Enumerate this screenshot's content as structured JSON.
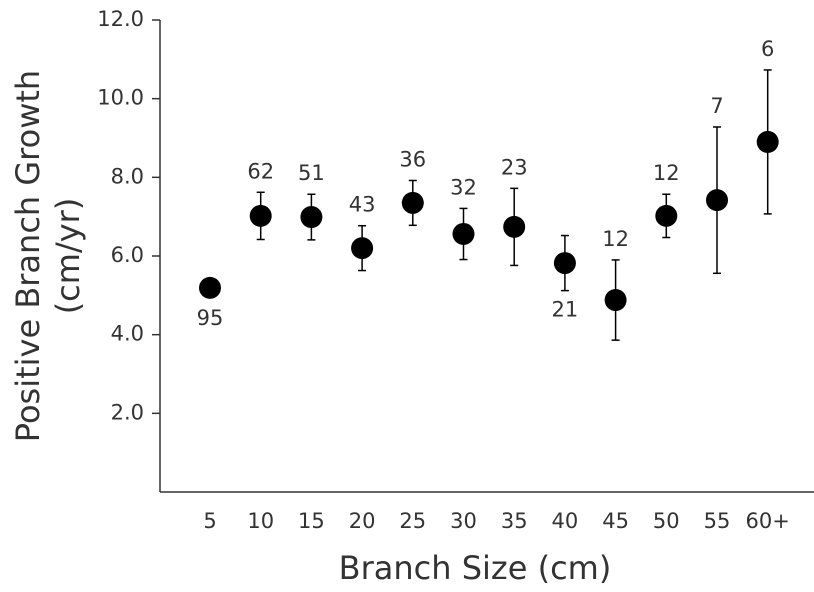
{
  "chart_data": {
    "type": "scatter",
    "x_label": "Branch Size (cm)",
    "y_label": [
      "Positive Branch Growth",
      "(cm/yr)"
    ],
    "categories": [
      "5",
      "10",
      "15",
      "20",
      "25",
      "30",
      "35",
      "40",
      "45",
      "50",
      "55",
      "60+"
    ],
    "values": [
      5.19,
      7.02,
      6.99,
      6.2,
      7.35,
      6.56,
      6.74,
      5.82,
      4.88,
      7.02,
      7.42,
      8.9
    ],
    "errors": [
      0,
      0.6,
      0.58,
      0.57,
      0.57,
      0.65,
      0.98,
      0.7,
      1.02,
      0.55,
      1.86,
      1.83
    ],
    "sample_sizes": [
      95,
      62,
      51,
      43,
      36,
      32,
      23,
      21,
      12,
      12,
      7,
      6
    ],
    "color": "#000000",
    "ylim": [
      0,
      12
    ],
    "yticks": [
      {
        "value": 2,
        "label": "2.0"
      },
      {
        "value": 4,
        "label": "4.0"
      },
      {
        "value": 6,
        "label": "6.0"
      },
      {
        "value": 8,
        "label": "8.0"
      },
      {
        "value": 10,
        "label": "10.0"
      },
      {
        "value": 12,
        "label": "12.0"
      }
    ],
    "grid": false
  }
}
